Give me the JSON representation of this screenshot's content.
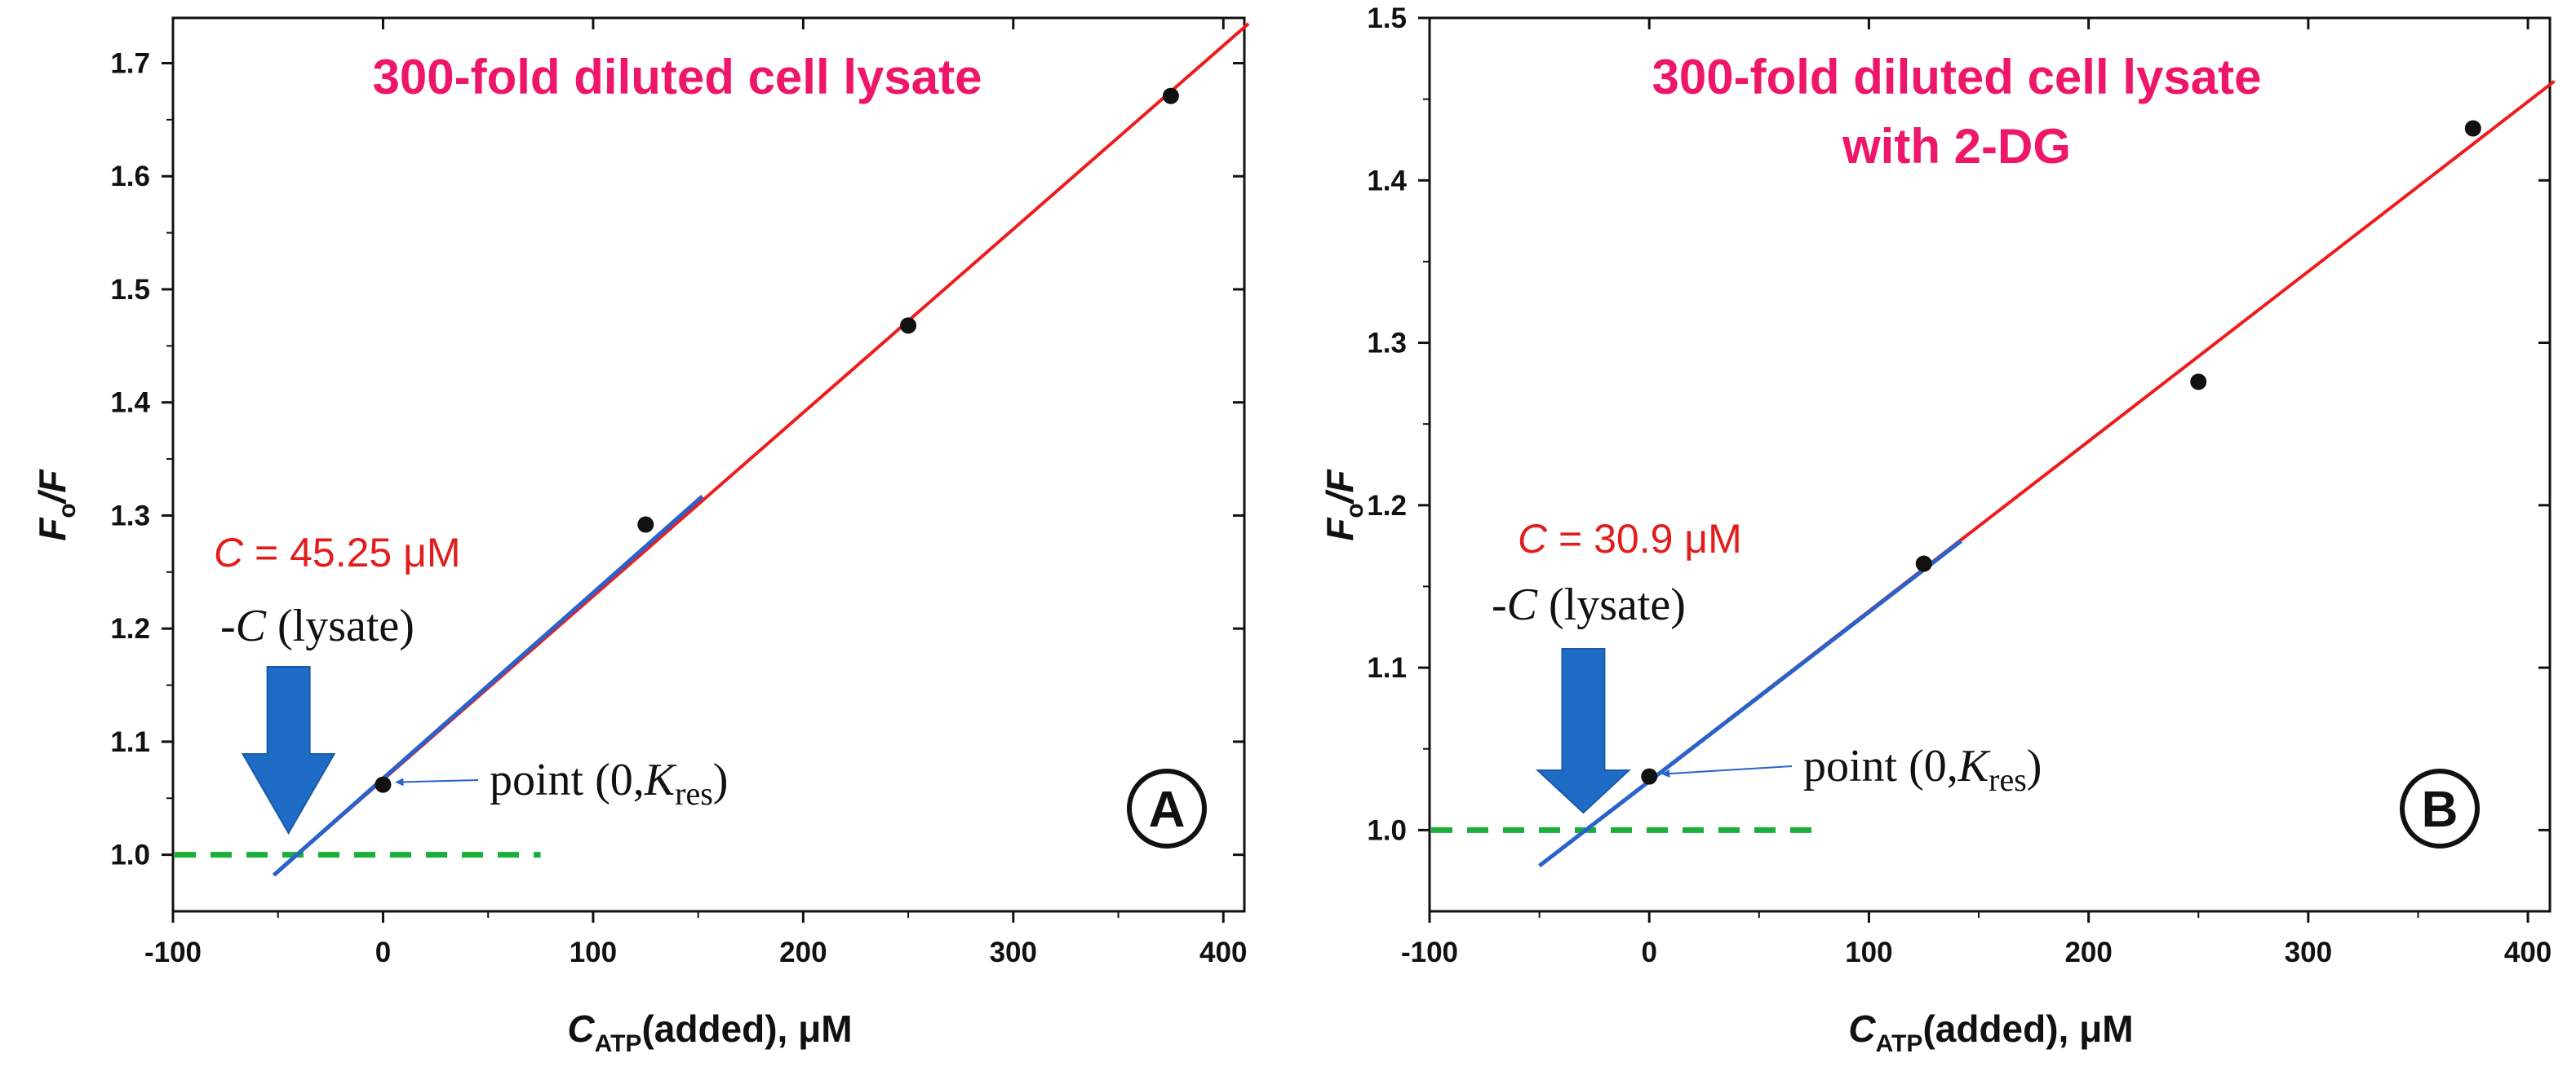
{
  "colors": {
    "fit_line": "#ee1c1c",
    "intercept_line": "#2a62c9",
    "arrow": "#1f6cc6",
    "baseline": "#1aae3a",
    "title": "#ee1669",
    "c_value": "#e11d1d",
    "points": "#111111"
  },
  "chart_data": [
    {
      "type": "scatter",
      "panel_label": "A",
      "title_lines": [
        "300-fold diluted cell lysate"
      ],
      "xlabel": {
        "main": "C",
        "sub": "ATP",
        "rest": "(added), μM"
      },
      "ylabel": {
        "main": "F",
        "sub": "o",
        "rest": "/F"
      },
      "xlim": [
        -100,
        410
      ],
      "ylim": [
        0.95,
        1.74
      ],
      "xticks": [
        -100,
        0,
        100,
        200,
        300,
        400
      ],
      "xtick_labels": [
        "-100",
        "0",
        "100",
        "200",
        "300",
        "400"
      ],
      "yticks": [
        1.0,
        1.1,
        1.2,
        1.3,
        1.4,
        1.5,
        1.6,
        1.7
      ],
      "ytick_labels": [
        "1.0",
        "1.1",
        "1.2",
        "1.3",
        "1.4",
        "1.5",
        "1.6",
        "1.7"
      ],
      "points": [
        {
          "x": 0,
          "y": 1.062
        },
        {
          "x": 125,
          "y": 1.292
        },
        {
          "x": 250,
          "y": 1.468
        },
        {
          "x": 375,
          "y": 1.671
        }
      ],
      "fit_line": {
        "x": [
          -52,
          412
        ],
        "y": [
          0.982,
          1.735
        ]
      },
      "intercept_line": {
        "x": [
          -52,
          152
        ],
        "y": [
          0.982,
          1.317
        ]
      },
      "baseline": {
        "y": 1.0,
        "x": [
          -100,
          75
        ]
      },
      "c_value": {
        "symbol": "C",
        "text": " = 45.25 μM",
        "value": 45.25
      },
      "neg_c_label": {
        "prefix": "-",
        "symbol": "C",
        "text": " (lysate)"
      },
      "arrow_x": -45,
      "point_label": {
        "text": "point (0,",
        "symbol": "K",
        "sub": "res",
        "close": ")"
      }
    },
    {
      "type": "scatter",
      "panel_label": "B",
      "title_lines": [
        "300-fold diluted cell lysate",
        "with 2-DG"
      ],
      "xlabel": {
        "main": "C",
        "sub": "ATP",
        "rest": "(added), μM"
      },
      "ylabel": {
        "main": "F",
        "sub": "o",
        "rest": "/F"
      },
      "xlim": [
        -100,
        410
      ],
      "ylim": [
        0.95,
        1.5
      ],
      "xticks": [
        -100,
        0,
        100,
        200,
        300,
        400
      ],
      "xtick_labels": [
        "-100",
        "0",
        "100",
        "200",
        "300",
        "400"
      ],
      "yticks": [
        1.0,
        1.1,
        1.2,
        1.3,
        1.4,
        1.5
      ],
      "ytick_labels": [
        "1.0",
        "1.1",
        "1.2",
        "1.3",
        "1.4",
        "1.5"
      ],
      "points": [
        {
          "x": 0,
          "y": 1.033
        },
        {
          "x": 125,
          "y": 1.164
        },
        {
          "x": 250,
          "y": 1.276
        },
        {
          "x": 375,
          "y": 1.432
        }
      ],
      "fit_line": {
        "x": [
          -50,
          412
        ],
        "y": [
          0.978,
          1.461
        ]
      },
      "intercept_line": {
        "x": [
          -50,
          142
        ],
        "y": [
          0.978,
          1.178
        ]
      },
      "baseline": {
        "y": 1.0,
        "x": [
          -100,
          80
        ]
      },
      "c_value": {
        "symbol": "C",
        "text": " = 30.9 μM",
        "value": 30.9
      },
      "neg_c_label": {
        "prefix": "-",
        "symbol": "C",
        "text": " (lysate)"
      },
      "arrow_x": -30,
      "point_label": {
        "text": "point (0,",
        "symbol": "K",
        "sub": "res",
        "close": ")"
      }
    }
  ]
}
